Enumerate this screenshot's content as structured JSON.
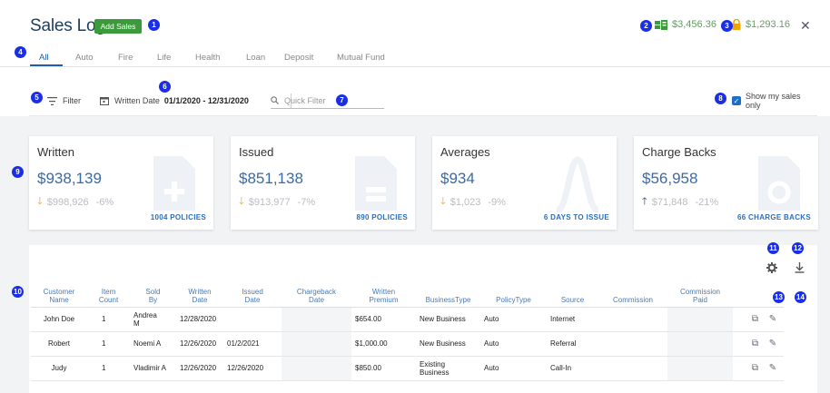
{
  "header": {
    "title": "Sales Log",
    "add_button": "Add Sales",
    "amount_1": "$3,456.36",
    "amount_2": "$1,293.16",
    "close": "✕"
  },
  "badges": [
    "1",
    "2",
    "3",
    "4",
    "5",
    "6",
    "7",
    "8",
    "9",
    "10",
    "11",
    "12",
    "13",
    "14"
  ],
  "tabs": [
    "All",
    "Auto",
    "Fire",
    "Life",
    "Health",
    "Loan",
    "Deposit",
    "Mutual Fund"
  ],
  "filter": {
    "filter_label": "Filter",
    "date_label": "Written Date",
    "date_range": "01/1/2020 - 12/31/2020",
    "quick_filter_placeholder": "Quick Filter",
    "show_my_sales": "Show my sales only"
  },
  "cards": [
    {
      "title": "Written",
      "value": "$938,139",
      "prev": "$998,926",
      "pct": "-6%",
      "footer": "1004 POLICIES",
      "trend": "down"
    },
    {
      "title": "Issued",
      "value": "$851,138",
      "prev": "$913,977",
      "pct": "-7%",
      "footer": "890 POLICIES",
      "trend": "down"
    },
    {
      "title": "Averages",
      "value": "$934",
      "prev": "$1,023",
      "pct": "-9%",
      "footer": "6 DAYS TO ISSUE",
      "trend": "down"
    },
    {
      "title": "Charge Backs",
      "value": "$56,958",
      "prev": "$71,848",
      "pct": "-21%",
      "footer": "66 CHARGE BACKS",
      "trend": "up"
    }
  ],
  "table": {
    "headers": [
      [
        "Customer",
        "Name"
      ],
      [
        "Item",
        "Count"
      ],
      [
        "Sold",
        "By"
      ],
      [
        "Written",
        "Date"
      ],
      [
        "Issued",
        "Date"
      ],
      [
        "Chargeback",
        "Date"
      ],
      [
        "Written",
        "Premium"
      ],
      [
        "BusinessType",
        ""
      ],
      [
        "PolicyType",
        ""
      ],
      [
        "Source",
        ""
      ],
      [
        "Commission",
        ""
      ],
      [
        "Commission",
        "Paid"
      ]
    ],
    "rows": [
      {
        "name": "John Doe",
        "count": "1",
        "sold_by_1": "Andrea",
        "sold_by_2": "M",
        "written": "12/28/2020",
        "issued": "",
        "chargeback": "",
        "premium": "$654.00",
        "btype_1": "New Business",
        "btype_2": "",
        "ptype": "Auto",
        "source": "Internet",
        "commission": "",
        "paid": ""
      },
      {
        "name": "Robert",
        "count": "1",
        "sold_by_1": "Noemi A",
        "sold_by_2": "",
        "written": "12/26/2020",
        "issued": "01/2/2021",
        "chargeback": "",
        "premium": "$1,000.00",
        "btype_1": "New Business",
        "btype_2": "",
        "ptype": "Auto",
        "source": "Referral",
        "commission": "",
        "paid": ""
      },
      {
        "name": "Judy",
        "count": "1",
        "sold_by_1": "Vladimir A",
        "sold_by_2": "",
        "written": "12/26/2020",
        "issued": "12/26/2020",
        "chargeback": "",
        "premium": "$850.00",
        "btype_1": "Existing",
        "btype_2": "Business",
        "ptype": "Auto",
        "source": "Call-In",
        "commission": "",
        "paid": ""
      }
    ]
  }
}
